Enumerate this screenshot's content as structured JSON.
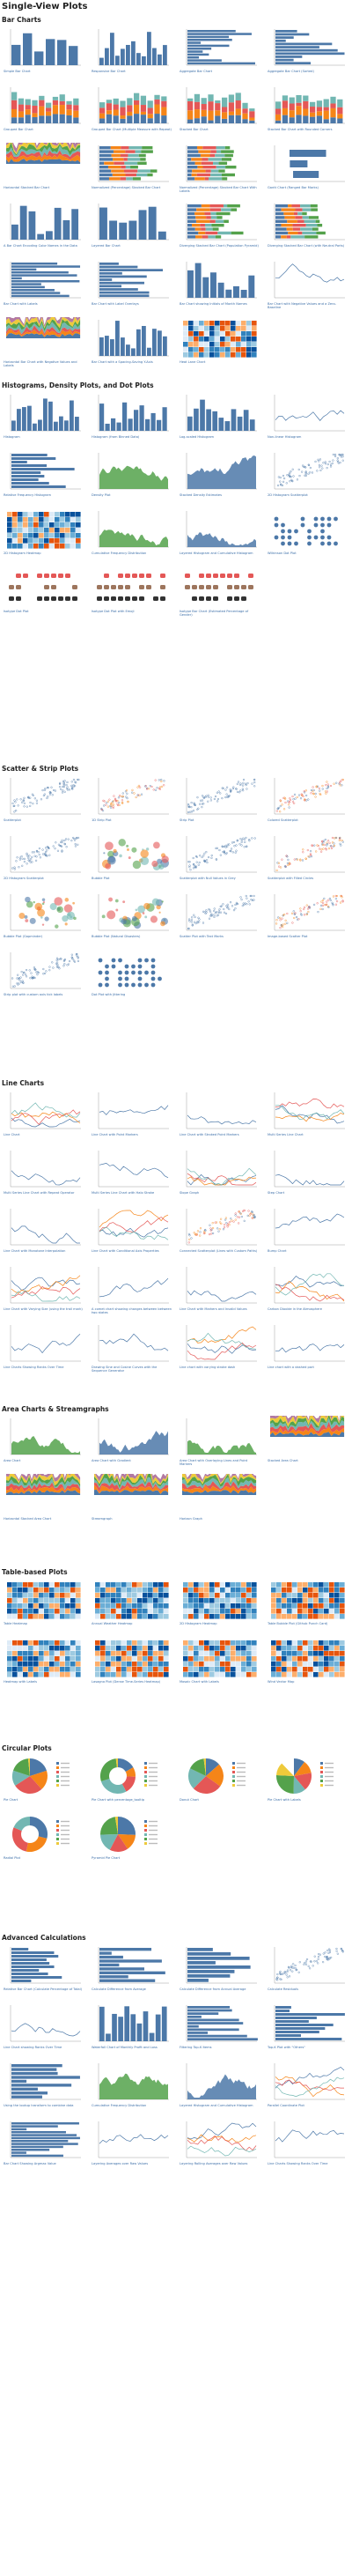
{
  "page_title": "Single-View Plots",
  "sections": [
    {
      "title": "Bar Charts",
      "tiles": [
        "Simple Bar Chart",
        "Responsive Bar Chart",
        "Aggregate Bar Chart",
        "Aggregate Bar Chart (Sorted)",
        "Grouped Bar Chart",
        "Grouped Bar Chart (Multiple Measure with Repeat)",
        "Stacked Bar Chart",
        "Stacked Bar Chart with Rounded Corners",
        "Horizontal Stacked Bar Chart",
        "Normalized (Percentage) Stacked Bar Chart",
        "Normalized (Percentage) Stacked Bar Chart With Labels",
        "Gantt Chart (Ranged Bar Marks)",
        "A Bar Chart Encoding Color Names in the Data",
        "Layered Bar Chart",
        "Diverging Stacked Bar Chart (Population Pyramid)",
        "Diverging Stacked Bar Chart (with Neutral Parts)",
        "Bar Chart with Labels",
        "Bar Chart with Label Overlays",
        "Bar Chart showing Initials of Month Names",
        "Bar Chart with Negative Values and a Zero-Baseline",
        "Horizontal Bar Chart with Negative Values and Labels",
        "Bar Chart with a Spacing-Saving Y-Axis",
        "Heat Lane Chart"
      ]
    },
    {
      "title": "Histograms, Density Plots, and Dot Plots",
      "tiles": [
        "Histogram",
        "Histogram (from Binned Data)",
        "Log-scaled Histogram",
        "Non-linear Histogram",
        "Relative Frequency Histogram",
        "Density Plot",
        "Stacked Density Estimates",
        "2D Histogram Scatterplot",
        "2D Histogram Heatmap",
        "Cumulative Frequency Distribution",
        "Layered Histogram and Cumulative Histogram",
        "Wilkinson Dot Plot",
        "Isotype Dot Plot",
        "Isotype Dot Plot with Emoji",
        "Isotype Bar Chart (Estimated Percentage of Gender)"
      ]
    },
    {
      "title": "Scatter & Strip Plots",
      "tiles": [
        "Scatterplot",
        "1D Strip Plot",
        "Strip Plot",
        "Colored Scatterplot",
        "2D Histogram Scatterplot",
        "Bubble Plot",
        "Scatterplot with Null Values in Grey",
        "Scatterplot with Filled Circles",
        "Bubble Plot (Gapminder)",
        "Bubble Plot (Natural Disasters)",
        "Scatter Plot with Text Marks",
        "Image-based Scatter Plot",
        "Strip plot with custom axis tick labels",
        "Dot Plot with Jittering"
      ]
    },
    {
      "title": "Line Charts",
      "tiles": [
        "Line Chart",
        "Line Chart with Point Markers",
        "Line Chart with Stroked Point Markers",
        "Multi Series Line Chart",
        "Multi Series Line Chart with Repeat Operator",
        "Multi Series Line Chart with Halo Stroke",
        "Slope Graph",
        "Step Chart",
        "Line Chart with Monotone Interpolation",
        "Line Chart with Conditional Axis Properties",
        "Connected Scatterplot (Lines with Custom Paths)",
        "Bump Chart",
        "Line Chart with Varying Size (using the trail mark)",
        "A comet chart showing changes between between two states",
        "Line Chart with Markers and Invalid Values",
        "Carbon Dioxide in the Atmosphere",
        "Line Charts Showing Ranks Over Time",
        "Drawing Sine and Cosine Curves with the Sequence Generator",
        "Line chart with varying stroke dash",
        "Line chart with a dashed part"
      ]
    },
    {
      "title": "Area Charts & Streamgraphs",
      "tiles": [
        "Area Chart",
        "Area Chart with Gradient",
        "Area Chart with Overlaying Lines and Point Markers",
        "Stacked Area Chart",
        "Horizontal Stacked Area Chart",
        "Streamgraph",
        "Horizon Graph"
      ]
    },
    {
      "title": "Table-based Plots",
      "tiles": [
        "Table Heatmap",
        "Annual Weather Heatmap",
        "2D Histogram Heatmap",
        "Table Bubble Plot (Github Punch Card)",
        "Heatmap with Labels",
        "Lasagna Plot (Dense Time-Series Heatmap)",
        "Mosaic Chart with Labels",
        "Wind Vector Map"
      ]
    },
    {
      "title": "Circular Plots",
      "tiles": [
        "Pie Chart",
        "Pie Chart with percentage_tooltip",
        "Donut Chart",
        "Pie Chart with Labels",
        "Radial Plot",
        "Pyramid Pie Chart"
      ]
    },
    {
      "title": "Advanced Calculations",
      "tiles": [
        "Relative Bar Chart (Calculate Percentage of Total)",
        "Calculate Difference from Average",
        "Calculate Difference from Annual Average",
        "Calculate Residuals",
        "Line Chart showing Ranks Over Time",
        "Waterfall Chart of Monthly Profit and Loss",
        "Filtering Top-K Items",
        "Top-K Plot with \"Others\"",
        "Using the lookup transform to combine data",
        "Cumulative Frequency Distribution",
        "Layered Histogram and Cumulative Histogram",
        "Parallel Coordinate Plot",
        "Bar Chart Showing Argmax Value",
        "Layering Averages over Raw Values",
        "Layering Rolling Averages over Raw Values",
        "Line Charts Showing Ranks Over Time"
      ]
    }
  ]
}
